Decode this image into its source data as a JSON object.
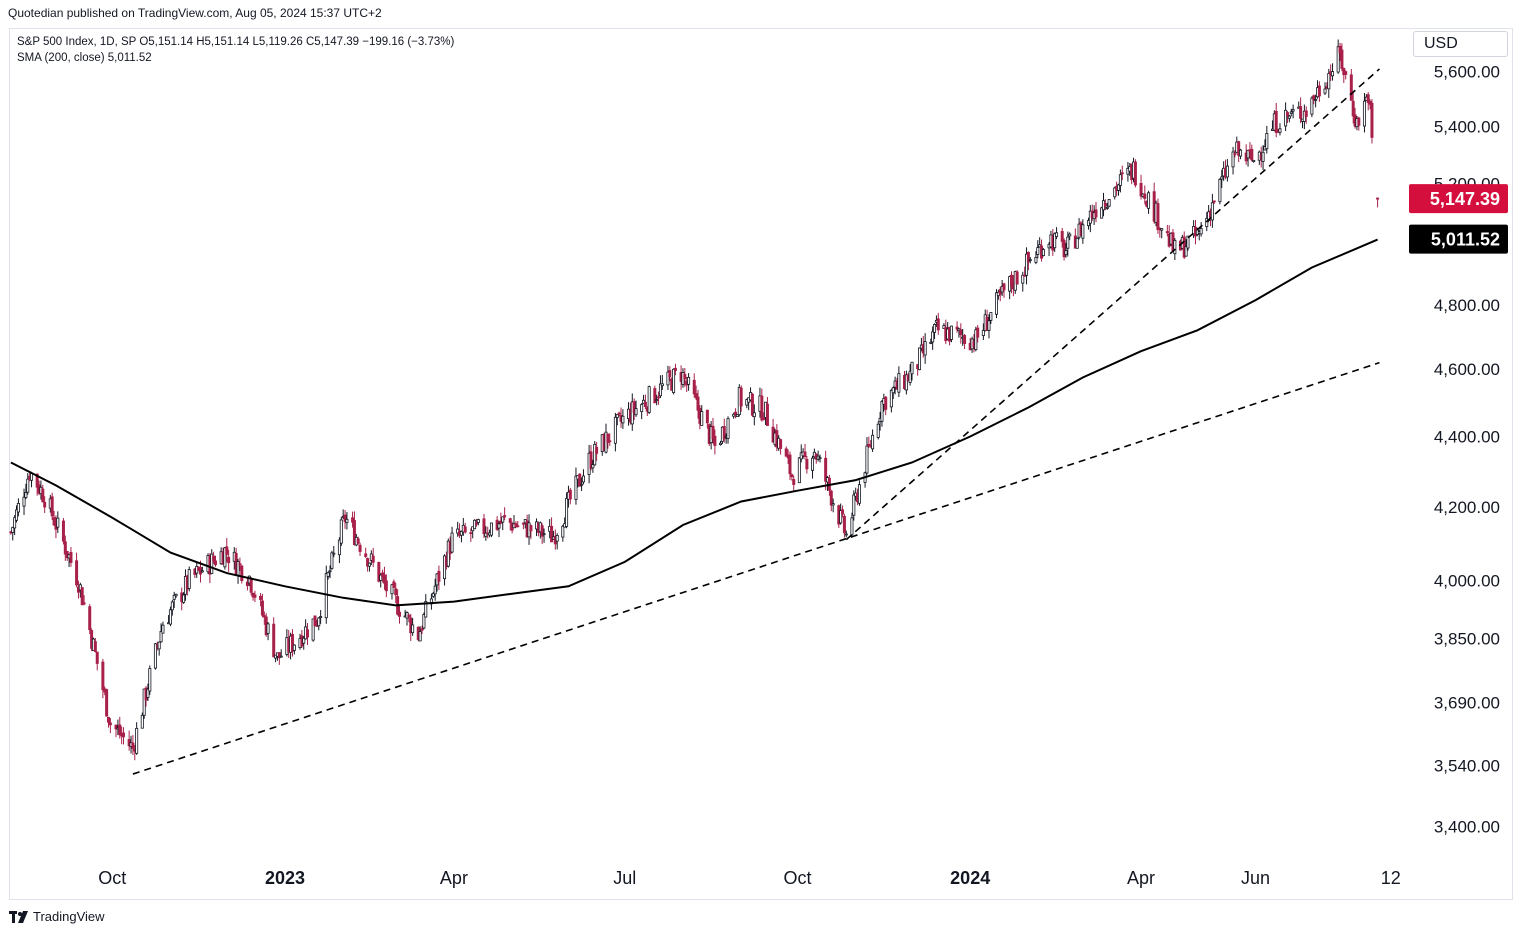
{
  "header": {
    "published_text": "Quotedian published on TradingView.com, Aug 05, 2024 15:37 UTC+2"
  },
  "legend": {
    "line1": "S&P 500 Index, 1D, SP  O5,151.14  H5,151.14  L5,119.26  C5,147.39  −199.16 (−3.73%)",
    "line2": "SMA (200, close)  5,011.52"
  },
  "currency_button": "USD",
  "footer": {
    "brand": "TradingView"
  },
  "colors": {
    "up": "#131722",
    "down": "#a8214a",
    "last_price_badge": "#d50f3d",
    "sma_badge": "#000000",
    "sma_line": "#000000",
    "trendline": "#000000"
  },
  "chart_data": {
    "type": "candlestick",
    "title": "S&P 500 Index, 1D, SP",
    "y_axis": {
      "position": "right",
      "scale": "log",
      "tick_labels": [
        "5,600.00",
        "5,400.00",
        "5,200.00",
        "4,800.00",
        "4,600.00",
        "4,400.00",
        "4,200.00",
        "4,000.00",
        "3,850.00",
        "3,690.00",
        "3,540.00",
        "3,400.00"
      ],
      "tick_values": [
        5600,
        5400,
        5200,
        4800,
        4600,
        4400,
        4200,
        4000,
        3850,
        3690,
        3540,
        3400
      ],
      "ylim": [
        3330,
        5760
      ]
    },
    "x_axis": {
      "tick_labels": [
        "Oct",
        "2023",
        "Apr",
        "Jul",
        "Oct",
        "2024",
        "Apr",
        "Jun",
        "12"
      ],
      "bold_labels": [
        "2023",
        "2024"
      ],
      "tick_dates": [
        "2022-10-01",
        "2023-01-01",
        "2023-04-01",
        "2023-07-01",
        "2023-10-01",
        "2024-01-01",
        "2024-04-01",
        "2024-06-01",
        "2024-08-12"
      ],
      "xlim": [
        "2022-08-07",
        "2024-08-18"
      ]
    },
    "last_price": {
      "value": 5147.39,
      "label": "5,147.39"
    },
    "sma": {
      "name": "SMA (200, close)",
      "last_label": "5,011.52",
      "points": [
        [
          "2022-08-08",
          4325
        ],
        [
          "2022-09-01",
          4260
        ],
        [
          "2022-10-01",
          4170
        ],
        [
          "2022-11-01",
          4075
        ],
        [
          "2022-12-01",
          4020
        ],
        [
          "2023-01-01",
          3985
        ],
        [
          "2023-02-01",
          3955
        ],
        [
          "2023-03-01",
          3935
        ],
        [
          "2023-04-01",
          3945
        ],
        [
          "2023-05-01",
          3965
        ],
        [
          "2023-06-01",
          3985
        ],
        [
          "2023-07-01",
          4050
        ],
        [
          "2023-08-01",
          4150
        ],
        [
          "2023-09-01",
          4215
        ],
        [
          "2023-10-01",
          4245
        ],
        [
          "2023-11-01",
          4275
        ],
        [
          "2023-12-01",
          4325
        ],
        [
          "2024-01-01",
          4400
        ],
        [
          "2024-02-01",
          4485
        ],
        [
          "2024-03-01",
          4575
        ],
        [
          "2024-04-01",
          4655
        ],
        [
          "2024-05-01",
          4720
        ],
        [
          "2024-06-01",
          4815
        ],
        [
          "2024-07-01",
          4920
        ],
        [
          "2024-08-05",
          5011.52
        ]
      ]
    },
    "trendlines": [
      {
        "from": [
          "2022-10-12",
          3520
        ],
        "to": [
          "2024-08-06",
          4620
        ]
      },
      {
        "from": [
          "2023-10-27",
          4110
        ],
        "to": [
          "2024-08-06",
          5610
        ]
      }
    ],
    "anchors": [
      [
        "2022-08-08",
        4130
      ],
      [
        "2022-08-18",
        4300
      ],
      [
        "2022-08-26",
        4230
      ],
      [
        "2022-09-13",
        4000
      ],
      [
        "2022-09-30",
        3640
      ],
      [
        "2022-10-12",
        3580
      ],
      [
        "2022-10-28",
        3890
      ],
      [
        "2022-11-11",
        4000
      ],
      [
        "2022-11-30",
        4080
      ],
      [
        "2022-12-13",
        4010
      ],
      [
        "2022-12-28",
        3800
      ],
      [
        "2023-01-18",
        3900
      ],
      [
        "2023-02-02",
        4170
      ],
      [
        "2023-02-24",
        3980
      ],
      [
        "2023-03-13",
        3860
      ],
      [
        "2023-03-31",
        4110
      ],
      [
        "2023-04-28",
        4160
      ],
      [
        "2023-05-24",
        4120
      ],
      [
        "2023-06-12",
        4330
      ],
      [
        "2023-06-30",
        4450
      ],
      [
        "2023-07-31",
        4590
      ],
      [
        "2023-08-18",
        4370
      ],
      [
        "2023-08-31",
        4510
      ],
      [
        "2023-09-13",
        4480
      ],
      [
        "2023-09-28",
        4290
      ],
      [
        "2023-10-10",
        4360
      ],
      [
        "2023-10-27",
        4120
      ],
      [
        "2023-11-15",
        4500
      ],
      [
        "2023-12-01",
        4590
      ],
      [
        "2023-12-14",
        4720
      ],
      [
        "2024-01-04",
        4690
      ],
      [
        "2024-01-19",
        4840
      ],
      [
        "2024-02-12",
        5020
      ],
      [
        "2024-02-21",
        4975
      ],
      [
        "2024-03-08",
        5120
      ],
      [
        "2024-03-28",
        5250
      ],
      [
        "2024-04-19",
        4970
      ],
      [
        "2024-05-02",
        5030
      ],
      [
        "2024-05-21",
        5310
      ],
      [
        "2024-05-31",
        5280
      ],
      [
        "2024-06-12",
        5420
      ],
      [
        "2024-06-28",
        5460
      ],
      [
        "2024-07-16",
        5660
      ],
      [
        "2024-07-25",
        5410
      ],
      [
        "2024-07-31",
        5520
      ],
      [
        "2024-08-01",
        5450
      ],
      [
        "2024-08-02",
        5346
      ]
    ],
    "final_bar": {
      "date": "2024-08-05",
      "open": 5151.14,
      "high": 5151.14,
      "low": 5119.26,
      "close": 5147.39
    }
  }
}
